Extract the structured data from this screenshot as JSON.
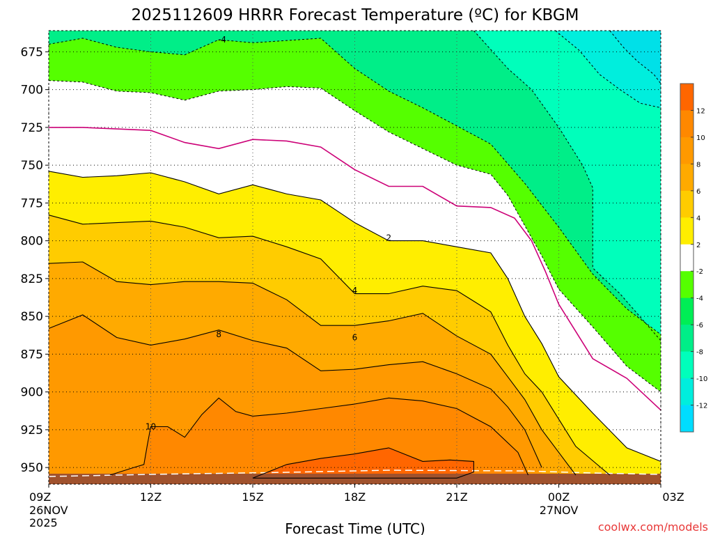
{
  "chart_data": {
    "type": "contour",
    "title": "2025112609 HRRR Forecast Temperature (ºC) for KBGM",
    "xlabel": "Forecast Time (UTC)",
    "credit": "coolwx.com/models",
    "x_ticks": [
      {
        "hour": 0,
        "label": "09Z",
        "sub": [
          "26NOV",
          "2025"
        ]
      },
      {
        "hour": 3,
        "label": "12Z",
        "sub": []
      },
      {
        "hour": 6,
        "label": "15Z",
        "sub": []
      },
      {
        "hour": 9,
        "label": "18Z",
        "sub": []
      },
      {
        "hour": 12,
        "label": "21Z",
        "sub": []
      },
      {
        "hour": 15,
        "label": "00Z",
        "sub": [
          "27NOV"
        ]
      },
      {
        "hour": 18,
        "label": "03Z",
        "sub": []
      }
    ],
    "y_ticks": [
      675,
      700,
      725,
      750,
      775,
      800,
      825,
      850,
      875,
      900,
      925,
      950
    ],
    "xlim_hours": [
      0,
      18
    ],
    "ylim_hpa": [
      661,
      961
    ],
    "colorbar": {
      "labels": [
        "12",
        "10",
        "8",
        "6",
        "4",
        "2",
        "-2",
        "-4",
        "-6",
        "-8",
        "-10",
        "-12"
      ],
      "colors": [
        "#ff6600",
        "#ff8800",
        "#ff9900",
        "#ffaa00",
        "#ffcc00",
        "#ffee00",
        "#ffffff",
        "#55ff00",
        "#00ee55",
        "#00ee88",
        "#00ffbb",
        "#00eedd",
        "#00ddff"
      ]
    },
    "contour_labels": [
      {
        "text": "-4",
        "hour": 5.1,
        "hpa": 667
      },
      {
        "text": "2",
        "hour": 10.0,
        "hpa": 798
      },
      {
        "text": "4",
        "hour": 9.0,
        "hpa": 833
      },
      {
        "text": "6",
        "hour": 9.0,
        "hpa": 864
      },
      {
        "text": "8",
        "hour": 5.0,
        "hpa": 862
      },
      {
        "text": "10",
        "hour": 3.0,
        "hpa": 923
      }
    ],
    "series": [
      {
        "level": "-10",
        "points": [
          [
            16.5,
            661
          ],
          [
            16.9,
            672
          ],
          [
            17.3,
            681
          ],
          [
            17.8,
            690
          ],
          [
            18.0,
            696
          ]
        ]
      },
      {
        "level": "-8",
        "points": [
          [
            14.9,
            661
          ],
          [
            15.6,
            674
          ],
          [
            16.2,
            690
          ],
          [
            16.8,
            700
          ],
          [
            17.4,
            709
          ],
          [
            18.0,
            712
          ]
        ]
      },
      {
        "level": "-6",
        "points": [
          [
            12.5,
            661
          ],
          [
            13.5,
            686
          ],
          [
            14.2,
            700
          ],
          [
            15.0,
            725
          ],
          [
            15.7,
            750
          ],
          [
            16.0,
            765
          ],
          [
            16.0,
            790
          ],
          [
            16.0,
            800
          ],
          [
            16.0,
            818
          ],
          [
            16.8,
            835
          ],
          [
            18.0,
            866
          ]
        ]
      },
      {
        "level": "-4",
        "points": [
          [
            0,
            670
          ],
          [
            1.0,
            666
          ],
          [
            2.0,
            672
          ],
          [
            3.0,
            675
          ],
          [
            4.0,
            677
          ],
          [
            5.0,
            667
          ],
          [
            6.0,
            669
          ],
          [
            8.0,
            666
          ],
          [
            9.0,
            686
          ],
          [
            10.0,
            701
          ],
          [
            11.0,
            712
          ],
          [
            12.0,
            724
          ],
          [
            13.0,
            736
          ],
          [
            14.0,
            762
          ],
          [
            15.0,
            791
          ],
          [
            16.0,
            822
          ],
          [
            17.0,
            845
          ],
          [
            18.0,
            862
          ]
        ]
      },
      {
        "level": "-2",
        "points": [
          [
            0,
            694
          ],
          [
            1.0,
            695
          ],
          [
            2.0,
            701
          ],
          [
            3.0,
            702
          ],
          [
            4.0,
            707
          ],
          [
            5.0,
            701
          ],
          [
            6.0,
            700
          ],
          [
            7.0,
            698
          ],
          [
            8.0,
            699
          ],
          [
            9.0,
            714
          ],
          [
            10.0,
            728
          ],
          [
            11.0,
            739
          ],
          [
            12.0,
            750
          ],
          [
            13.0,
            756
          ],
          [
            13.5,
            770
          ],
          [
            14.5,
            810
          ],
          [
            15.0,
            832
          ],
          [
            16.0,
            857
          ],
          [
            17.0,
            883
          ],
          [
            18.0,
            900
          ]
        ]
      },
      {
        "level": "0",
        "points": [
          [
            0,
            725
          ],
          [
            1.0,
            725
          ],
          [
            2.0,
            726
          ],
          [
            3.0,
            727
          ],
          [
            4.0,
            735
          ],
          [
            5.0,
            739
          ],
          [
            6.0,
            733
          ],
          [
            7.0,
            734
          ],
          [
            8.0,
            738
          ],
          [
            9.0,
            753
          ],
          [
            10.0,
            764
          ],
          [
            11.0,
            764
          ],
          [
            12.0,
            777
          ],
          [
            13.0,
            778
          ],
          [
            13.7,
            785
          ],
          [
            14.2,
            800
          ],
          [
            14.6,
            820
          ],
          [
            15.0,
            842
          ],
          [
            15.5,
            860
          ],
          [
            16.0,
            878
          ],
          [
            17.0,
            891
          ],
          [
            18.0,
            912
          ]
        ]
      },
      {
        "level": "2",
        "points": [
          [
            0,
            754
          ],
          [
            1.0,
            758
          ],
          [
            2.0,
            757
          ],
          [
            3.0,
            755
          ],
          [
            4.0,
            761
          ],
          [
            5.0,
            769
          ],
          [
            6.0,
            763
          ],
          [
            7.0,
            769
          ],
          [
            8.0,
            773
          ],
          [
            9.0,
            788
          ],
          [
            10.0,
            800
          ],
          [
            11.0,
            800
          ],
          [
            12.0,
            804
          ],
          [
            13.0,
            808
          ],
          [
            13.5,
            825
          ],
          [
            14.0,
            850
          ],
          [
            14.5,
            868
          ],
          [
            15.0,
            890
          ],
          [
            16.0,
            914
          ],
          [
            17.0,
            937
          ],
          [
            18.0,
            946
          ]
        ]
      },
      {
        "level": "4",
        "points": [
          [
            0,
            783
          ],
          [
            1.0,
            789
          ],
          [
            2.0,
            788
          ],
          [
            3.0,
            787
          ],
          [
            4.0,
            791
          ],
          [
            5.0,
            798
          ],
          [
            6.0,
            797
          ],
          [
            7.0,
            804
          ],
          [
            8.0,
            812
          ],
          [
            9.0,
            835
          ],
          [
            10.0,
            835
          ],
          [
            11.0,
            830
          ],
          [
            12.0,
            833
          ],
          [
            12.5,
            840
          ],
          [
            13.0,
            847
          ],
          [
            13.5,
            869
          ],
          [
            14.0,
            888
          ],
          [
            14.5,
            900
          ],
          [
            15.0,
            918
          ],
          [
            15.5,
            936
          ],
          [
            16.5,
            955
          ]
        ]
      },
      {
        "level": "6",
        "points": [
          [
            0,
            815
          ],
          [
            1.0,
            814
          ],
          [
            2.0,
            827
          ],
          [
            3.0,
            829
          ],
          [
            4.0,
            827
          ],
          [
            5.0,
            827
          ],
          [
            6.0,
            828
          ],
          [
            7.0,
            839
          ],
          [
            8.0,
            856
          ],
          [
            9.0,
            856
          ],
          [
            10.0,
            853
          ],
          [
            11.0,
            848
          ],
          [
            12.0,
            863
          ],
          [
            13.0,
            875
          ],
          [
            13.5,
            890
          ],
          [
            14.0,
            905
          ],
          [
            14.5,
            925
          ],
          [
            15.0,
            940
          ],
          [
            15.5,
            955
          ]
        ]
      },
      {
        "level": "8",
        "points": [
          [
            0,
            858
          ],
          [
            1.0,
            849
          ],
          [
            2.0,
            864
          ],
          [
            3.0,
            869
          ],
          [
            4.0,
            865
          ],
          [
            5.0,
            859
          ],
          [
            6.0,
            866
          ],
          [
            7.0,
            871
          ],
          [
            8.0,
            886
          ],
          [
            9.0,
            885
          ],
          [
            10.0,
            882
          ],
          [
            11.0,
            880
          ],
          [
            12.0,
            888
          ],
          [
            13.0,
            898
          ],
          [
            13.5,
            910
          ],
          [
            14.0,
            925
          ],
          [
            14.5,
            950
          ]
        ]
      },
      {
        "level": "10",
        "points": [
          [
            1.8,
            955
          ],
          [
            2.5,
            950
          ],
          [
            2.8,
            948
          ],
          [
            2.9,
            935
          ],
          [
            3.0,
            923
          ],
          [
            3.5,
            923
          ],
          [
            4.0,
            930
          ],
          [
            4.5,
            915
          ],
          [
            5.0,
            904
          ],
          [
            5.5,
            913
          ],
          [
            6.0,
            916
          ],
          [
            7.0,
            914
          ],
          [
            8.0,
            911
          ],
          [
            9.0,
            908
          ],
          [
            10.0,
            904
          ],
          [
            11.0,
            906
          ],
          [
            12.0,
            911
          ],
          [
            13.0,
            923
          ],
          [
            13.8,
            940
          ],
          [
            14.1,
            955
          ]
        ]
      },
      {
        "level": "12",
        "points": [
          [
            6.0,
            957
          ],
          [
            7.0,
            948
          ],
          [
            8.0,
            944
          ],
          [
            9.0,
            941
          ],
          [
            10.0,
            937
          ],
          [
            11.0,
            946
          ],
          [
            11.8,
            945
          ],
          [
            12.5,
            946
          ],
          [
            12.5,
            953
          ],
          [
            12.0,
            957
          ]
        ]
      }
    ]
  }
}
